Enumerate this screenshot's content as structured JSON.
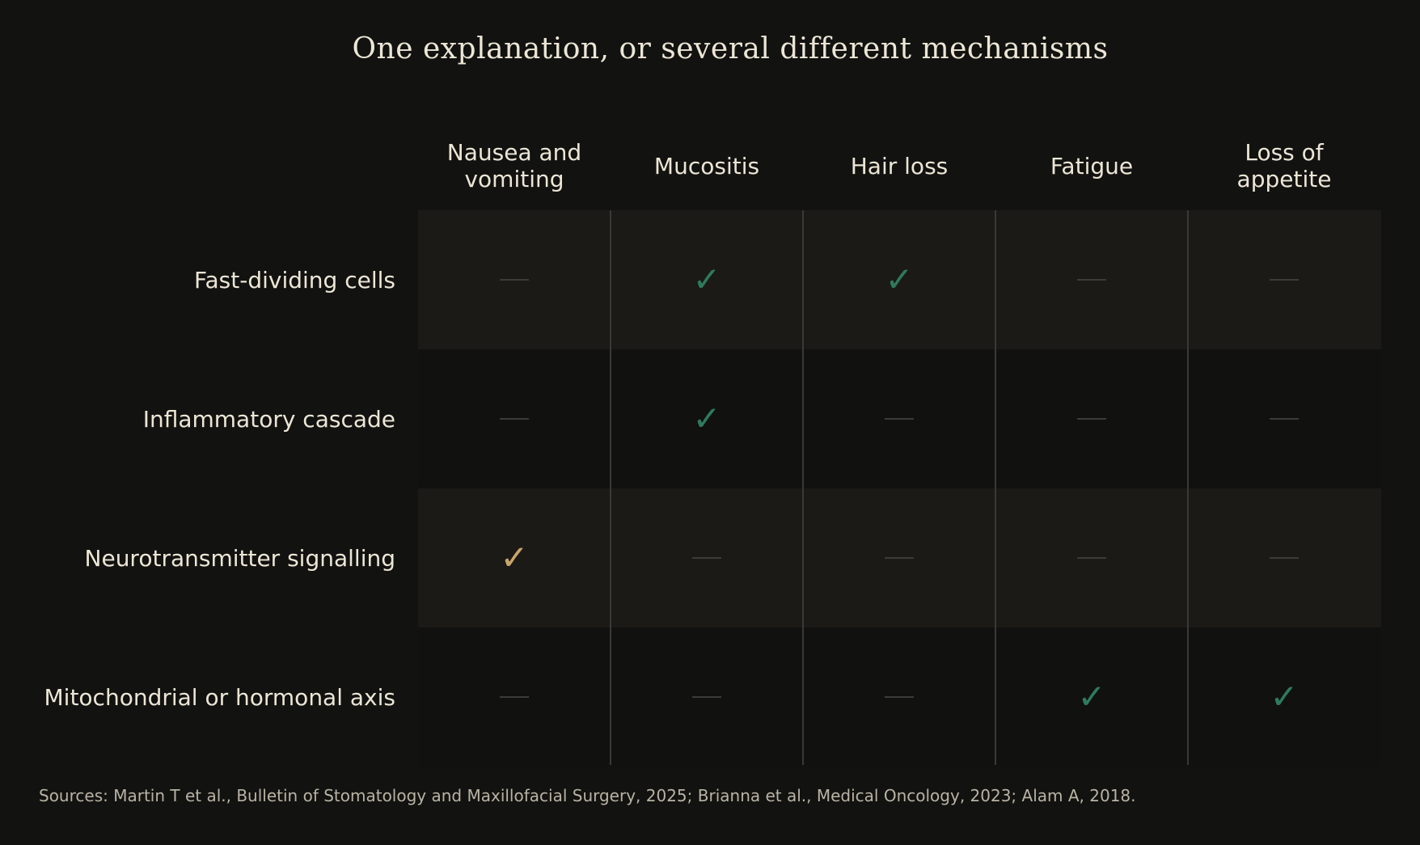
{
  "title": "One explanation, or several different mechanisms",
  "columns": [
    {
      "line1": "Nausea and",
      "line2": "vomiting"
    },
    {
      "line1": "Mucositis",
      "line2": ""
    },
    {
      "line1": "Hair loss",
      "line2": ""
    },
    {
      "line1": "Fatigue",
      "line2": ""
    },
    {
      "line1": "Loss of",
      "line2": "appetite"
    }
  ],
  "rows": [
    {
      "label": "Fast-dividing cells",
      "cells": [
        "none",
        "green",
        "green",
        "none",
        "none"
      ]
    },
    {
      "label": "Inflammatory cascade",
      "cells": [
        "none",
        "green",
        "none",
        "none",
        "none"
      ]
    },
    {
      "label": "Neurotransmitter signalling",
      "cells": [
        "gold",
        "none",
        "none",
        "none",
        "none"
      ]
    },
    {
      "label": "Mitochondrial or hormonal axis",
      "cells": [
        "none",
        "none",
        "none",
        "green",
        "green"
      ]
    }
  ],
  "check_glyph": "✓",
  "colors": {
    "background": "#121210",
    "check_green": "#2f7a5c",
    "check_gold": "#caa56a",
    "dash": "#3c3b37"
  },
  "sources": "Sources: Martin T et al., Bulletin of Stomatology and Maxillofacial Surgery, 2025; Brianna et al., Medical Oncology, 2023; Alam A, 2018."
}
